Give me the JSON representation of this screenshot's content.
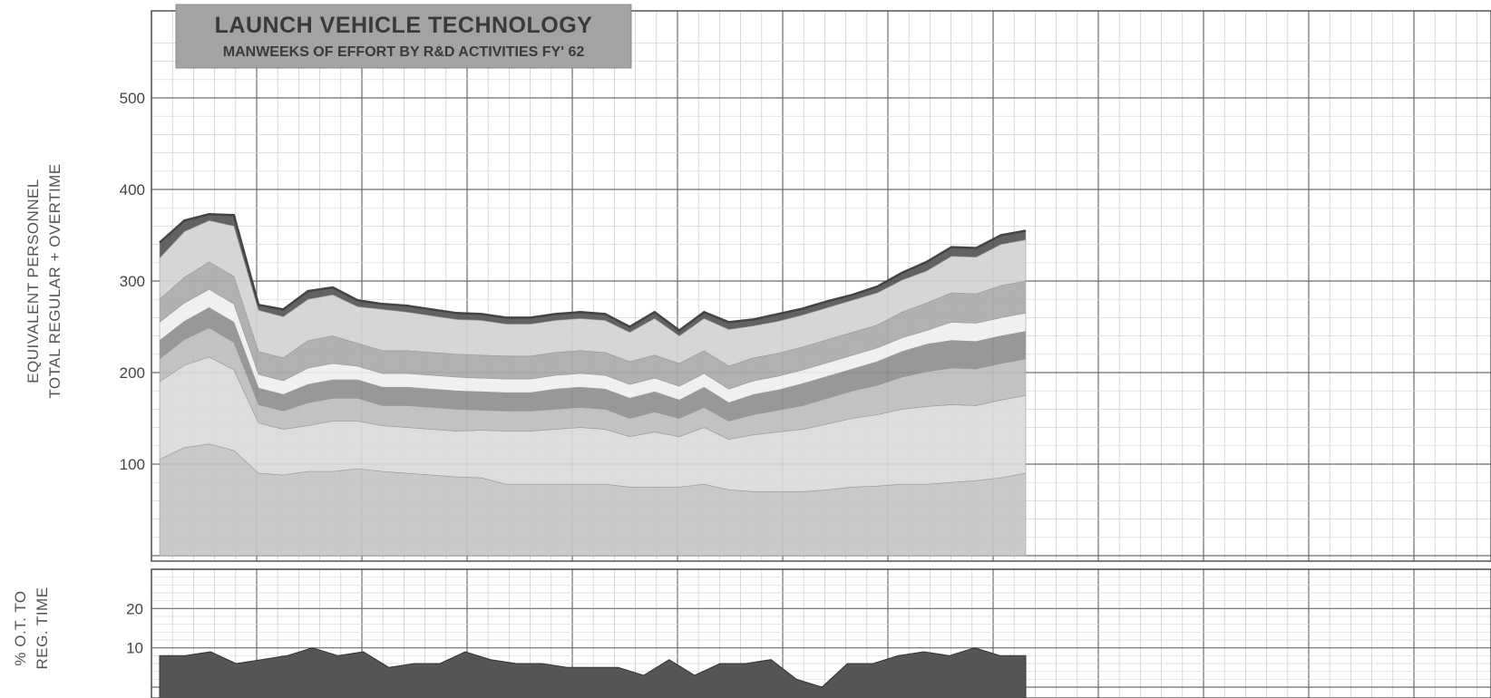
{
  "chart_data": [
    {
      "type": "area",
      "stacked": true,
      "title": "LAUNCH VEHICLE TECHNOLOGY",
      "subtitle": "MANWEEKS OF EFFORT BY R&D ACTIVITIES  FY' 62",
      "ylabel_line1": "EQUIVALENT PERSONNEL",
      "ylabel_line2": "TOTAL  REGULAR + OVERTIME",
      "ylim": [
        0,
        500
      ],
      "yticks": [
        100,
        200,
        300,
        400,
        500
      ],
      "n_weeks": 52,
      "grid": true,
      "series": [
        {
          "values": [
            105,
            118,
            122,
            115,
            90,
            88,
            92,
            92,
            95,
            92,
            90,
            88,
            86,
            85,
            78,
            78,
            78,
            78,
            78,
            75,
            75,
            75,
            78,
            72,
            70,
            70,
            70,
            72,
            75,
            76,
            78,
            78,
            80,
            82,
            85,
            90
          ],
          "color": "#c4c4c4"
        },
        {
          "values": [
            85,
            90,
            95,
            88,
            55,
            50,
            50,
            55,
            52,
            50,
            50,
            50,
            50,
            52,
            58,
            58,
            60,
            62,
            60,
            55,
            60,
            55,
            62,
            55,
            62,
            65,
            68,
            72,
            75,
            78,
            82,
            85,
            85,
            82,
            85,
            85
          ],
          "color": "#dadada"
        },
        {
          "values": [
            25,
            28,
            32,
            30,
            20,
            20,
            25,
            25,
            25,
            22,
            24,
            24,
            24,
            22,
            22,
            22,
            22,
            22,
            22,
            20,
            22,
            20,
            22,
            20,
            22,
            24,
            26,
            28,
            30,
            32,
            35,
            38,
            40,
            40,
            40,
            40
          ],
          "color": "#bdbdbd"
        },
        {
          "values": [
            20,
            20,
            22,
            22,
            18,
            18,
            20,
            20,
            20,
            20,
            20,
            20,
            20,
            20,
            20,
            20,
            22,
            22,
            22,
            22,
            22,
            20,
            22,
            20,
            22,
            22,
            24,
            24,
            24,
            26,
            28,
            30,
            30,
            30,
            30,
            30
          ],
          "color": "#8f8f8f"
        },
        {
          "values": [
            20,
            20,
            20,
            20,
            15,
            15,
            18,
            18,
            15,
            15,
            15,
            15,
            15,
            15,
            15,
            15,
            15,
            15,
            15,
            15,
            15,
            15,
            15,
            15,
            15,
            15,
            15,
            15,
            15,
            15,
            15,
            15,
            20,
            20,
            20,
            20
          ],
          "color": "#efefef"
        },
        {
          "values": [
            25,
            28,
            30,
            30,
            25,
            25,
            30,
            30,
            25,
            25,
            25,
            25,
            25,
            25,
            25,
            25,
            25,
            25,
            25,
            25,
            25,
            25,
            25,
            25,
            25,
            25,
            25,
            25,
            25,
            25,
            28,
            30,
            32,
            32,
            35,
            35
          ],
          "color": "#aaaaaa"
        },
        {
          "values": [
            45,
            50,
            45,
            55,
            45,
            45,
            45,
            45,
            40,
            45,
            42,
            40,
            38,
            38,
            35,
            35,
            35,
            35,
            35,
            32,
            40,
            30,
            35,
            40,
            35,
            35,
            35,
            35,
            35,
            35,
            35,
            35,
            40,
            40,
            45,
            45
          ],
          "color": "#d2d2d2"
        },
        {
          "values": [
            17,
            12,
            7,
            12,
            6,
            8,
            9,
            8,
            7,
            6,
            7,
            7,
            7,
            7,
            7,
            7,
            7,
            7,
            7,
            6,
            7,
            6,
            7,
            8,
            7,
            8,
            7,
            7,
            6,
            7,
            8,
            10,
            10,
            10,
            10,
            10
          ],
          "color": "#555555"
        }
      ]
    },
    {
      "type": "area",
      "ylabel_line1": "% O.T. TO",
      "ylabel_line2": "REG. TIME",
      "ylim": [
        0,
        30
      ],
      "yticks": [
        10,
        20
      ],
      "series": [
        {
          "values": [
            8,
            8,
            9,
            6,
            7,
            8,
            10,
            8,
            9,
            5,
            6,
            6,
            9,
            7,
            6,
            6,
            5,
            5,
            5,
            3,
            7,
            3,
            6,
            6,
            7,
            2,
            0,
            6,
            6,
            8,
            9,
            8,
            10,
            8,
            8
          ],
          "color": "#555555"
        }
      ]
    }
  ]
}
